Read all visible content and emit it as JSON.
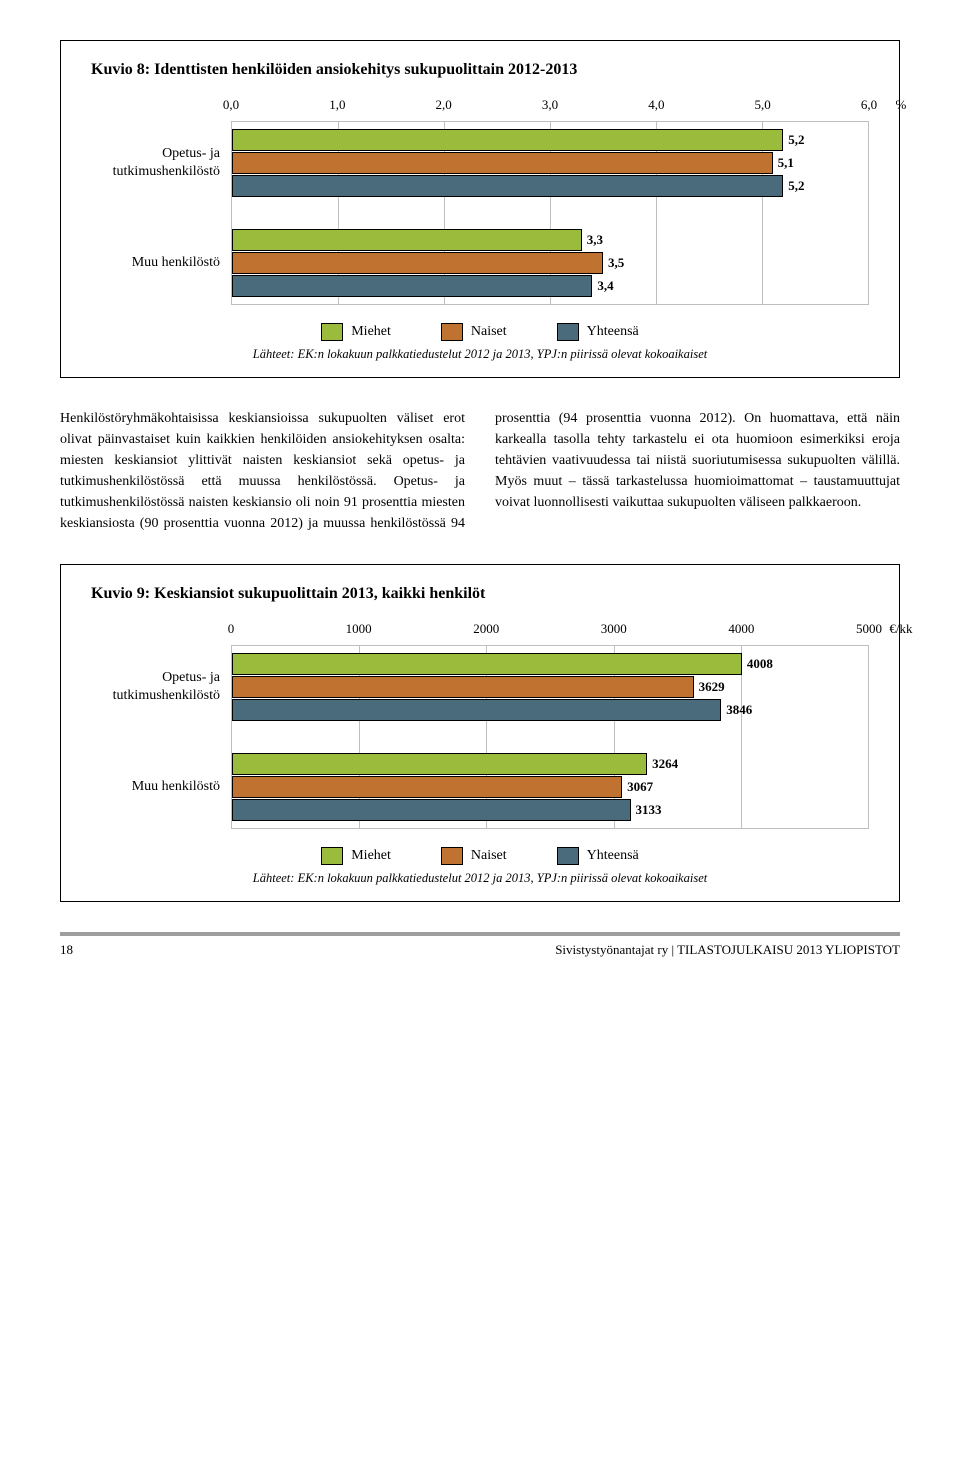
{
  "colors": {
    "miehet": "#9bbb3c",
    "naiset": "#c07330",
    "yhteensa": "#4a6b7c",
    "grid": "#bfbfbf",
    "border": "#000000"
  },
  "chart1": {
    "title": "Kuvio 8: Identtisten henkilöiden ansiokehitys sukupuolittain 2012-2013",
    "xmin": 0.0,
    "xmax": 6.0,
    "xticks": [
      "0,0",
      "1,0",
      "2,0",
      "3,0",
      "4,0",
      "5,0",
      "6,0"
    ],
    "xtick_step": 1.0,
    "unit": "%",
    "categories": [
      {
        "label": "Opetus- ja\ntutkimushenkilöstö",
        "bars": [
          {
            "series": "miehet",
            "value": 5.2,
            "label": "5,2"
          },
          {
            "series": "naiset",
            "value": 5.1,
            "label": "5,1"
          },
          {
            "series": "yhteensa",
            "value": 5.2,
            "label": "5,2"
          }
        ]
      },
      {
        "label": "Muu henkilöstö",
        "bars": [
          {
            "series": "miehet",
            "value": 3.3,
            "label": "3,3"
          },
          {
            "series": "naiset",
            "value": 3.5,
            "label": "3,5"
          },
          {
            "series": "yhteensa",
            "value": 3.4,
            "label": "3,4"
          }
        ]
      }
    ],
    "legend": [
      {
        "series": "miehet",
        "label": "Miehet"
      },
      {
        "series": "naiset",
        "label": "Naiset"
      },
      {
        "series": "yhteensa",
        "label": "Yhteensä"
      }
    ],
    "source": "Lähteet: EK:n lokakuun palkkatiedustelut 2012 ja 2013, YPJ:n piirissä olevat kokoaikaiset"
  },
  "body_text": "Henkilöstöryhmäkohtaisissa keskiansioissa sukupuolten väliset erot olivat päinvastaiset kuin kaikkien henkilöiden ansiokehityksen osalta: miesten keskiansiot ylittivät naisten keskiansiot sekä opetus- ja tutkimushenkilöstössä että muussa henkilöstössä. Opetus- ja tutkimushenkilöstössä naisten keskiansio oli noin 91 prosenttia miesten keskiansiosta (90 prosenttia vuonna 2012) ja muussa henkilöstössä 94 prosenttia (94 prosenttia vuonna 2012). On huomattava, että näin karkealla tasolla tehty tarkastelu ei ota huomioon esimerkiksi eroja tehtävien vaativuudessa tai niistä suoriutumisessa sukupuolten välillä. Myös muut – tässä tarkastelussa huomioimattomat – taustamuuttujat voivat luonnollisesti vaikuttaa sukupuolten väliseen palkkaeroon.",
  "chart2": {
    "title": "Kuvio 9: Keskiansiot sukupuolittain 2013, kaikki henkilöt",
    "xmin": 0,
    "xmax": 5000,
    "xticks": [
      "0",
      "1000",
      "2000",
      "3000",
      "4000",
      "5000"
    ],
    "xtick_step": 1000,
    "unit": "€/kk",
    "categories": [
      {
        "label": "Opetus- ja\ntutkimushenkilöstö",
        "bars": [
          {
            "series": "miehet",
            "value": 4008,
            "label": "4008"
          },
          {
            "series": "naiset",
            "value": 3629,
            "label": "3629"
          },
          {
            "series": "yhteensa",
            "value": 3846,
            "label": "3846"
          }
        ]
      },
      {
        "label": "Muu henkilöstö",
        "bars": [
          {
            "series": "miehet",
            "value": 3264,
            "label": "3264"
          },
          {
            "series": "naiset",
            "value": 3067,
            "label": "3067"
          },
          {
            "series": "yhteensa",
            "value": 3133,
            "label": "3133"
          }
        ]
      }
    ],
    "legend": [
      {
        "series": "miehet",
        "label": "Miehet"
      },
      {
        "series": "naiset",
        "label": "Naiset"
      },
      {
        "series": "yhteensa",
        "label": "Yhteensä"
      }
    ],
    "source": "Lähteet: EK:n lokakuun palkkatiedustelut 2012 ja 2013, YPJ:n piirissä olevat kokoaikaiset"
  },
  "footer": {
    "page": "18",
    "text": "Sivistystyönantajat ry | TILASTOJULKAISU 2013 YLIOPISTOT"
  }
}
